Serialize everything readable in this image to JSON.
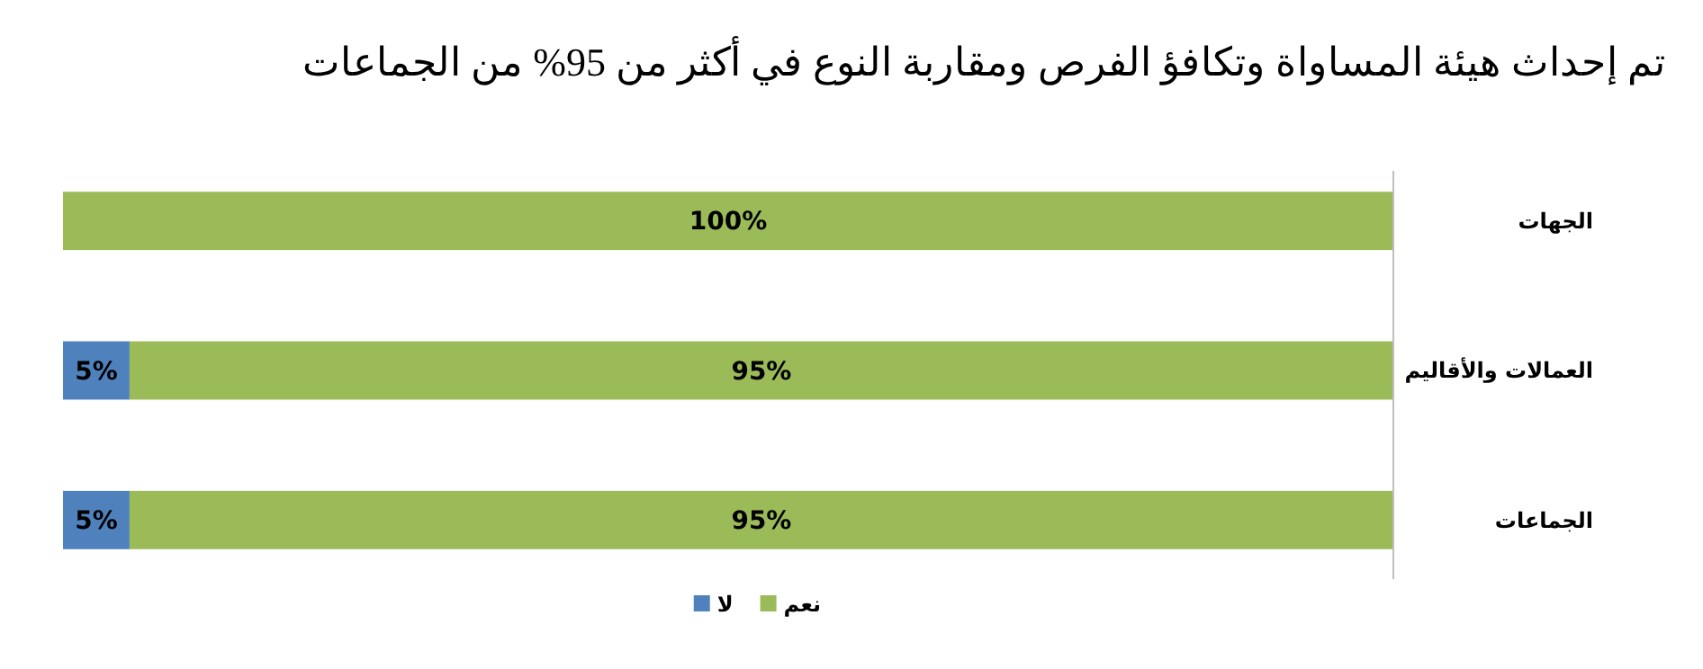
{
  "chart_data": {
    "type": "bar",
    "orientation": "horizontal",
    "stacked": true,
    "title": "تم إحداث هيئة المساواة وتكافؤ الفرص ومقاربة النوع في أكثر من 95% من الجماعات",
    "categories": [
      "الجهات",
      "العمالات والأقاليم",
      "الجماعات"
    ],
    "xlim": [
      100,
      0
    ],
    "series": [
      {
        "name": "نعم",
        "color": "#9bbb59",
        "values": [
          100,
          95,
          95
        ],
        "value_labels": [
          "100%",
          "95%",
          "95%"
        ]
      },
      {
        "name": "لا",
        "color": "#4f81bd",
        "values": [
          0,
          5,
          5
        ],
        "value_labels": [
          null,
          "5%",
          "5%"
        ]
      }
    ],
    "tick_labels": "y",
    "legend": "bottom"
  }
}
